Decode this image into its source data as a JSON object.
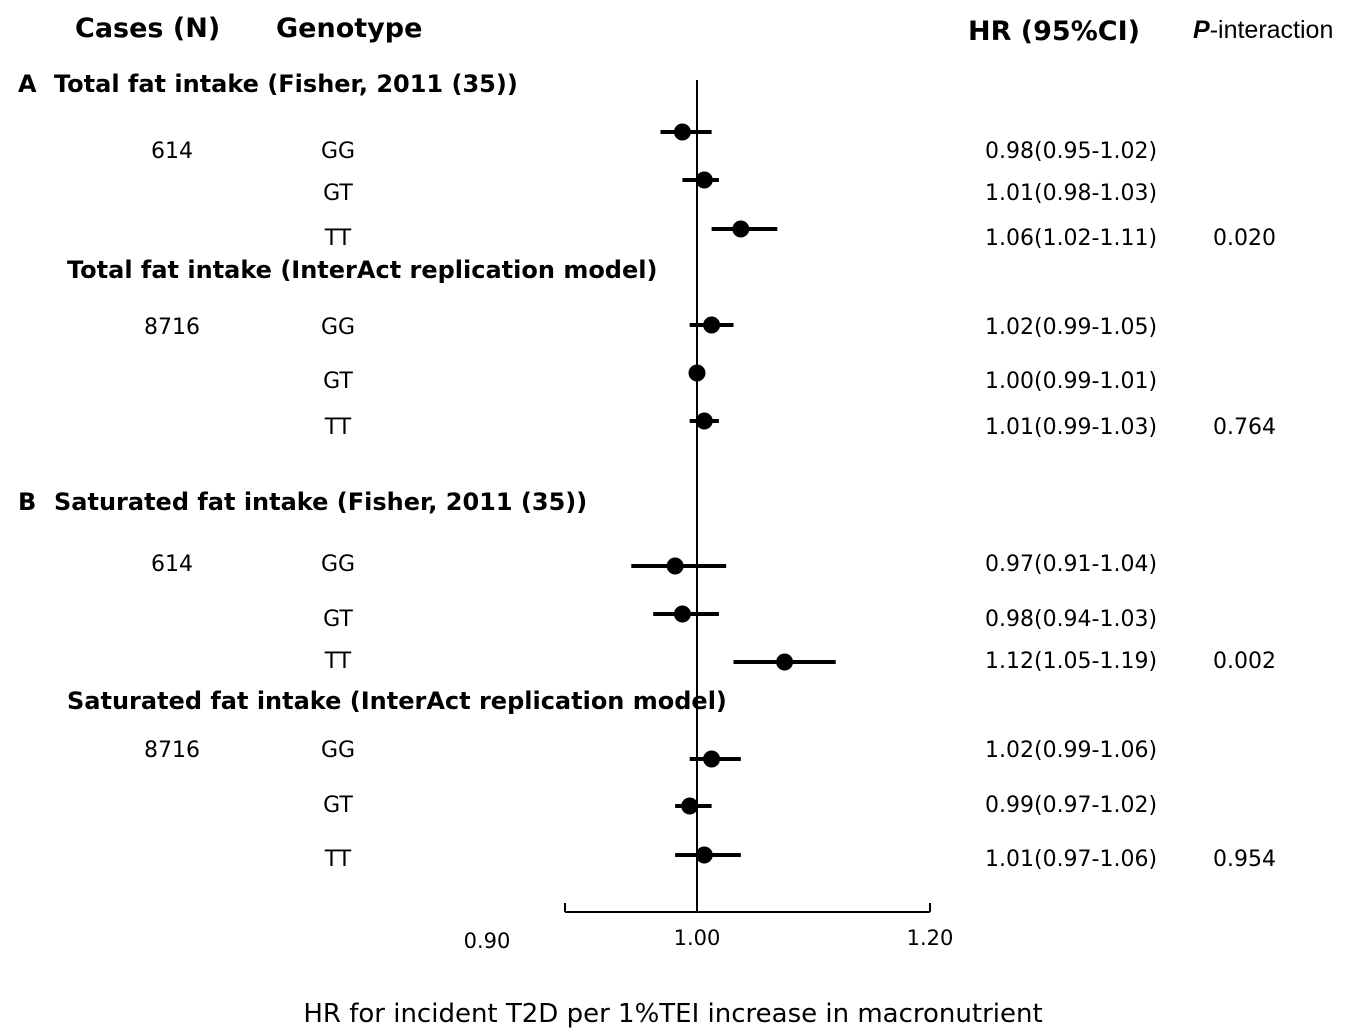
{
  "headers": {
    "cases": "Cases (N)",
    "genotype": "Genotype",
    "hr": "HR (95%CI)",
    "p_italic": "P",
    "p_rest": "-interaction"
  },
  "chart_data": {
    "type": "forest",
    "xlabel": "HR for incident T2D per 1%TEI increase in macronutrient",
    "reference_line": 1.0,
    "xlim": [
      0.9,
      1.2
    ],
    "xticks": [
      "0.90",
      "1.00",
      "1.20"
    ],
    "groups": [
      {
        "panel": "A",
        "title": "Total fat intake (Fisher, 2011 (35))",
        "cases": "614",
        "p_interaction": "0.020",
        "rows": [
          {
            "genotype": "GG",
            "hr": 0.98,
            "lo": 0.95,
            "hi": 1.02,
            "label": "0.98(0.95-1.02)"
          },
          {
            "genotype": "GT",
            "hr": 1.01,
            "lo": 0.98,
            "hi": 1.03,
            "label": "1.01(0.98-1.03)"
          },
          {
            "genotype": "TT",
            "hr": 1.06,
            "lo": 1.02,
            "hi": 1.11,
            "label": "1.06(1.02-1.11)"
          }
        ]
      },
      {
        "panel": "",
        "title": "Total fat intake (InterAct replication model)",
        "cases": "8716",
        "p_interaction": "0.764",
        "rows": [
          {
            "genotype": "GG",
            "hr": 1.02,
            "lo": 0.99,
            "hi": 1.05,
            "label": "1.02(0.99-1.05)"
          },
          {
            "genotype": "GT",
            "hr": 1.0,
            "lo": 0.99,
            "hi": 1.01,
            "label": "1.00(0.99-1.01)"
          },
          {
            "genotype": "TT",
            "hr": 1.01,
            "lo": 0.99,
            "hi": 1.03,
            "label": "1.01(0.99-1.03)"
          }
        ]
      },
      {
        "panel": "B",
        "title": "Saturated fat intake (Fisher, 2011 (35))",
        "cases": "614",
        "p_interaction": "0.002",
        "rows": [
          {
            "genotype": "GG",
            "hr": 0.97,
            "lo": 0.91,
            "hi": 1.04,
            "label": "0.97(0.91-1.04)"
          },
          {
            "genotype": "GT",
            "hr": 0.98,
            "lo": 0.94,
            "hi": 1.03,
            "label": "0.98(0.94-1.03)"
          },
          {
            "genotype": "TT",
            "hr": 1.12,
            "lo": 1.05,
            "hi": 1.19,
            "label": "1.12(1.05-1.19)"
          }
        ]
      },
      {
        "panel": "",
        "title": "Saturated fat intake (InterAct replication model)",
        "cases": "8716",
        "p_interaction": "0.954",
        "rows": [
          {
            "genotype": "GG",
            "hr": 1.02,
            "lo": 0.99,
            "hi": 1.06,
            "label": "1.02(0.99-1.06)"
          },
          {
            "genotype": "GT",
            "hr": 0.99,
            "lo": 0.97,
            "hi": 1.02,
            "label": "0.99(0.97-1.02)"
          },
          {
            "genotype": "TT",
            "hr": 1.01,
            "lo": 0.97,
            "hi": 1.06,
            "label": "1.01(0.97-1.06)"
          }
        ]
      }
    ]
  }
}
